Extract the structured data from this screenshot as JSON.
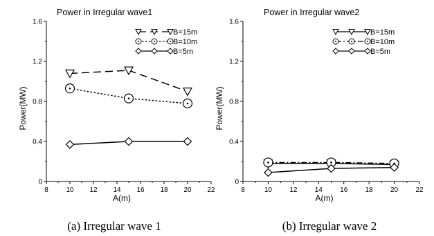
{
  "chart_data": [
    {
      "type": "line",
      "title": "Power in Irregular wave1",
      "xlabel": "A(m)",
      "ylabel": "Power(MW)",
      "xlim": [
        8,
        22
      ],
      "ylim": [
        0,
        1.6
      ],
      "xticks": [
        "8",
        "10",
        "12",
        "14",
        "16",
        "18",
        "20",
        "22"
      ],
      "yticks": [
        "0",
        "0.4",
        "0.8",
        "1.2",
        "1.6"
      ],
      "x": [
        10,
        15,
        20
      ],
      "series": [
        {
          "name": "B=15m",
          "values": [
            1.08,
            1.11,
            0.9
          ],
          "marker": "triangle-down",
          "dash": "long-dash"
        },
        {
          "name": "B=10m",
          "values": [
            0.93,
            0.83,
            0.78
          ],
          "marker": "circle-dot",
          "dash": "dot"
        },
        {
          "name": "B=5m",
          "values": [
            0.37,
            0.4,
            0.4
          ],
          "marker": "diamond",
          "dash": "solid"
        }
      ],
      "legend": "top-right",
      "caption": "(a) Irregular wave 1"
    },
    {
      "type": "line",
      "title": "Power in Irregular wave2",
      "xlabel": "A(m)",
      "ylabel": "Power(MW)",
      "xlim": [
        8,
        22
      ],
      "ylim": [
        0,
        1.6
      ],
      "xticks": [
        "8",
        "10",
        "12",
        "14",
        "16",
        "18",
        "20",
        "22"
      ],
      "yticks": [
        "0",
        "0.4",
        "0.8",
        "1.2",
        "1.6"
      ],
      "x": [
        10,
        15,
        20
      ],
      "series": [
        {
          "name": "B=15m",
          "values": [
            0.18,
            0.18,
            0.17
          ],
          "marker": "triangle-down",
          "dash": "solid"
        },
        {
          "name": "B=10m",
          "values": [
            0.19,
            0.19,
            0.18
          ],
          "marker": "circle-dot",
          "dash": "dash-dot"
        },
        {
          "name": "B=5m",
          "values": [
            0.09,
            0.13,
            0.14
          ],
          "marker": "diamond",
          "dash": "solid"
        }
      ],
      "legend": "top-right",
      "caption": "(b) Irregular wave 2"
    }
  ]
}
